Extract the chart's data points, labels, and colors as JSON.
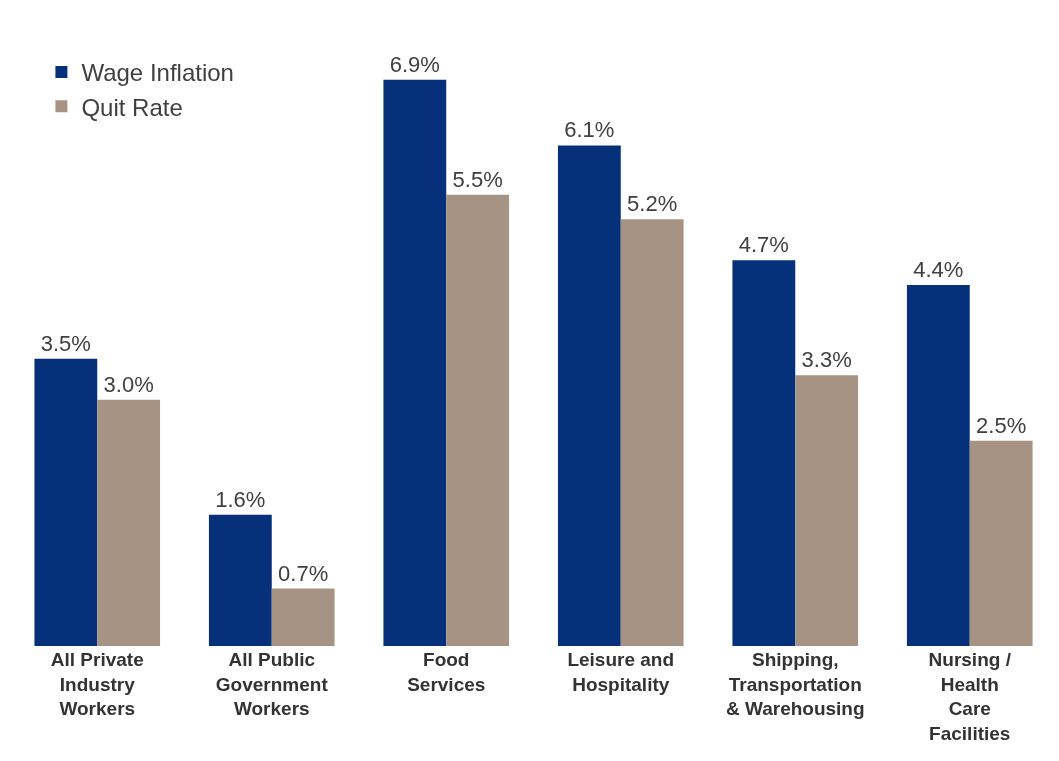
{
  "chart_data": {
    "type": "bar",
    "categories": [
      "All Private\nIndustry\nWorkers",
      "All Public\nGovernment\nWorkers",
      "Food\nServices",
      "Leisure and\nHospitality",
      "Shipping,\nTransportation\n& Warehousing",
      "Nursing /\nHealth\nCare\nFacilities"
    ],
    "series": [
      {
        "name": "Wage Inflation",
        "color": "#06317a",
        "values": [
          3.5,
          1.6,
          6.9,
          6.1,
          4.7,
          4.4
        ],
        "value_labels": [
          "3.5%",
          "1.6%",
          "6.9%",
          "6.1%",
          "4.7%",
          "4.4%"
        ]
      },
      {
        "name": "Quit Rate",
        "color": "#a69383",
        "values": [
          3.0,
          0.7,
          5.5,
          5.2,
          3.3,
          2.5
        ],
        "value_labels": [
          "3.0%",
          "0.7%",
          "5.5%",
          "5.2%",
          "3.3%",
          "2.5%"
        ]
      }
    ],
    "legend": "top left",
    "grid": false,
    "tick_labels": "x"
  }
}
